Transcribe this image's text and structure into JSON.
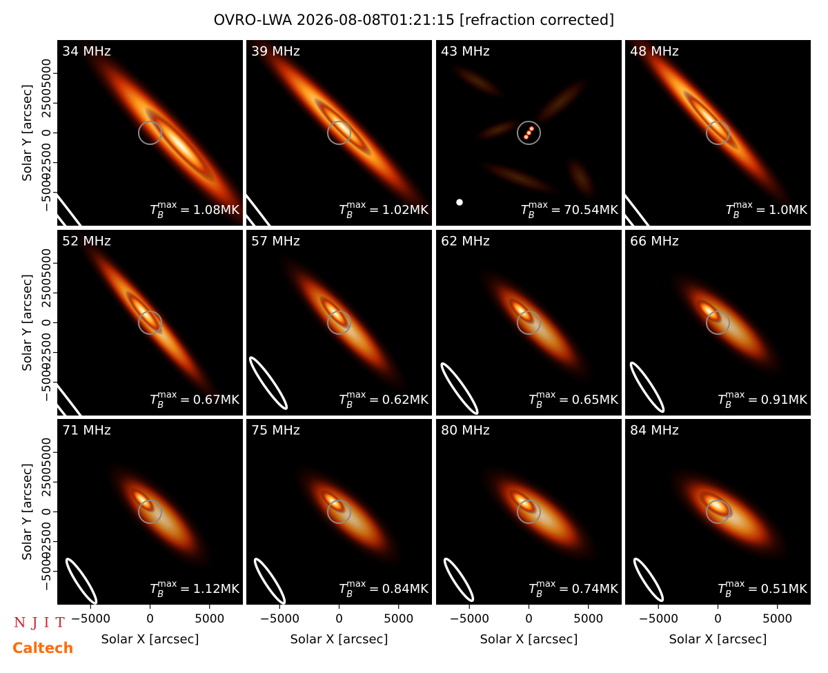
{
  "chart_data": {
    "type": "image-grid",
    "title": "OVRO-LWA 2026-08-08T01:21:15 [refraction corrected]",
    "x_label": "Solar X [arcsec]",
    "y_label": "Solar Y [arcsec]",
    "xlim": [
      -7800,
      7800
    ],
    "ylim": [
      -7800,
      7800
    ],
    "xticks": [
      {
        "value": -5000,
        "label": "−5000"
      },
      0,
      5000
    ],
    "yticks": [
      {
        "value": -5000,
        "label": "−5000"
      },
      {
        "value": -2500,
        "label": "−2500"
      },
      0,
      2500,
      5000
    ],
    "tmax_symbol": {
      "base": "T",
      "sub": "B",
      "sup": "max",
      "equals": "="
    },
    "panels": [
      {
        "label": "34 MHz",
        "tmax": 1.08,
        "tmax_label": "1.08MK"
      },
      {
        "label": "39 MHz",
        "tmax": 1.02,
        "tmax_label": "1.02MK"
      },
      {
        "label": "43 MHz",
        "tmax": 70.54,
        "tmax_label": "70.54MK"
      },
      {
        "label": "48 MHz",
        "tmax": 1.0,
        "tmax_label": "1.0MK"
      },
      {
        "label": "52 MHz",
        "tmax": 0.67,
        "tmax_label": "0.67MK"
      },
      {
        "label": "57 MHz",
        "tmax": 0.62,
        "tmax_label": "0.62MK"
      },
      {
        "label": "62 MHz",
        "tmax": 0.65,
        "tmax_label": "0.65MK"
      },
      {
        "label": "66 MHz",
        "tmax": 0.91,
        "tmax_label": "0.91MK"
      },
      {
        "label": "71 MHz",
        "tmax": 1.12,
        "tmax_label": "1.12MK"
      },
      {
        "label": "75 MHz",
        "tmax": 0.84,
        "tmax_label": "0.84MK"
      },
      {
        "label": "80 MHz",
        "tmax": 0.74,
        "tmax_label": "0.74MK"
      },
      {
        "label": "84 MHz",
        "tmax": 0.51,
        "tmax_label": "0.51MK"
      }
    ]
  },
  "logos": {
    "njit": "NJIT",
    "caltech": "Caltech"
  }
}
